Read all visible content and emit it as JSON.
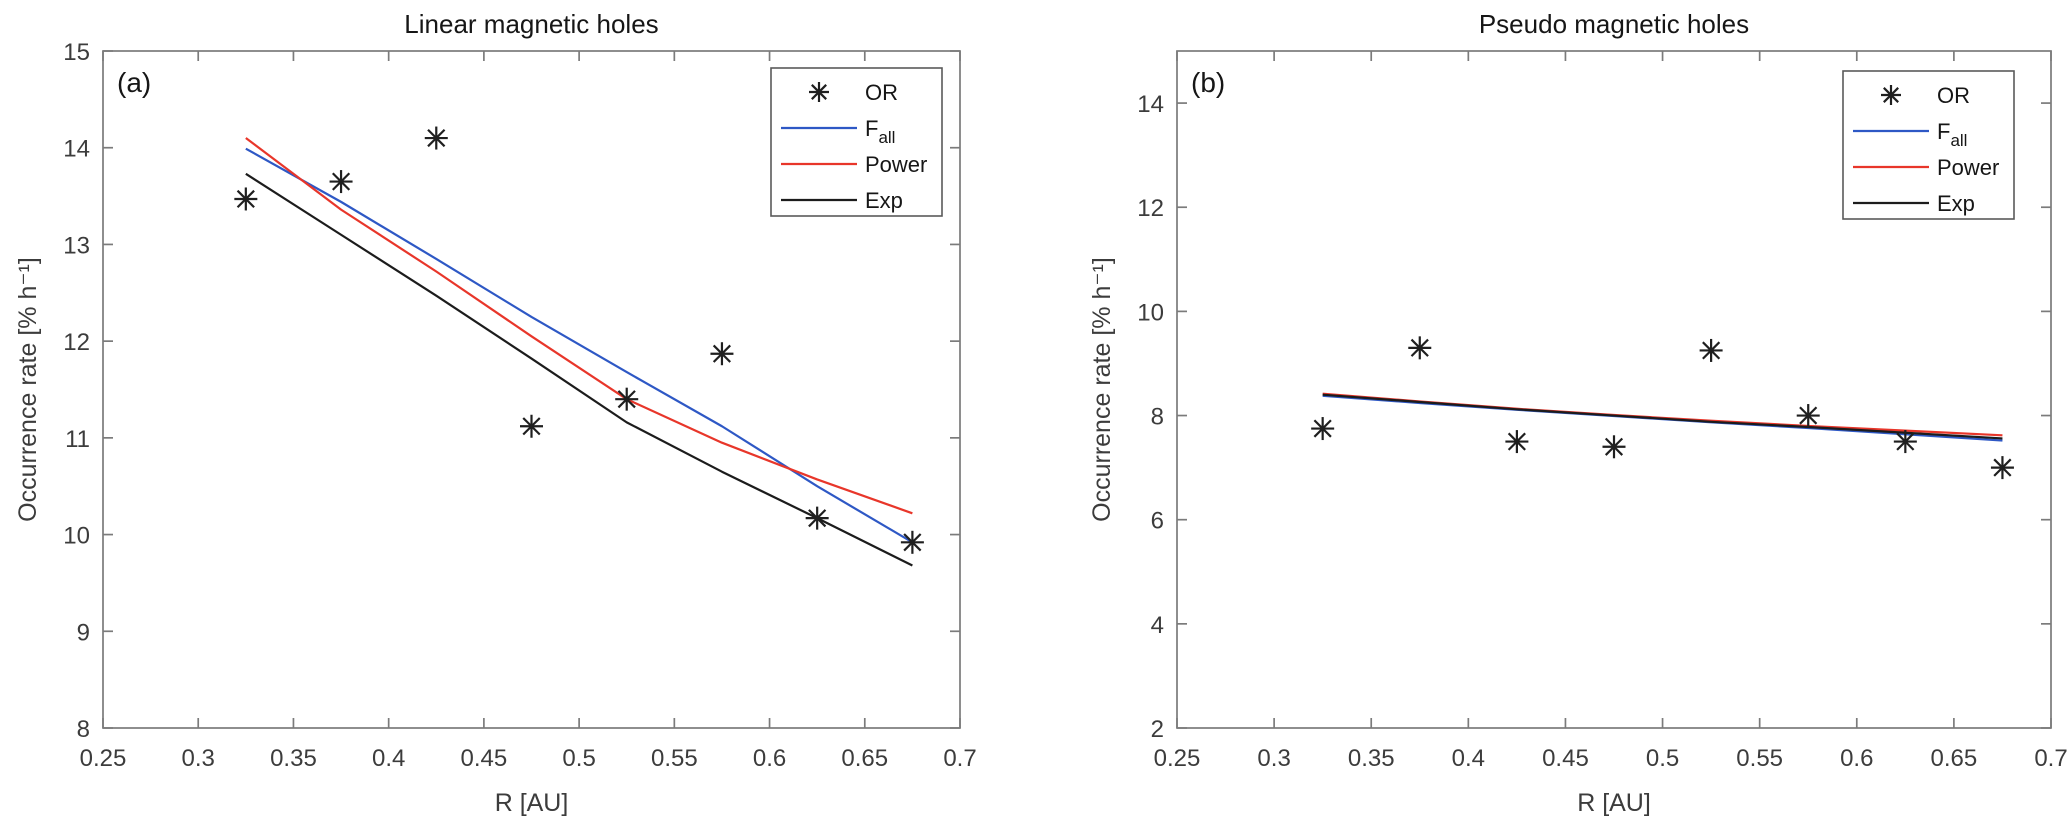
{
  "figure": {
    "background": "#ffffff",
    "axis_color": "#7b7b7b",
    "tick_label_color": "#3c3c3c",
    "title_color": "#161616",
    "marker_color": "#1f1f1f",
    "series_colors": {
      "F_all": "#2e58c5",
      "Power": "#e8362a",
      "Exp": "#1c1c1c"
    }
  },
  "legend": {
    "position": "top-right-inset",
    "entries": [
      {
        "kind": "marker",
        "label": "OR",
        "sub": "",
        "color": "#1f1f1f"
      },
      {
        "kind": "line",
        "label": "F",
        "sub": "all",
        "color": "#2e58c5"
      },
      {
        "kind": "line",
        "label": "Power",
        "sub": "",
        "color": "#e8362a"
      },
      {
        "kind": "line",
        "label": "Exp",
        "sub": "",
        "color": "#1c1c1c"
      }
    ]
  },
  "chart_data": [
    {
      "type": "scatter",
      "panel_letter": "(a)",
      "title": "Linear magnetic holes",
      "xlabel": "R [AU]",
      "ylabel": "Occurrence rate [% h⁻¹]",
      "xlim": [
        0.25,
        0.7
      ],
      "ylim": [
        8,
        15
      ],
      "xtick_labels": [
        "0.25",
        "0.3",
        "0.35",
        "0.4",
        "0.45",
        "0.5",
        "0.55",
        "0.6",
        "0.65",
        "0.7"
      ],
      "ytick_labels": [
        "8",
        "9",
        "10",
        "11",
        "12",
        "13",
        "14",
        "15"
      ],
      "grid": false,
      "legend_position": "top-right",
      "x": [
        0.325,
        0.375,
        0.425,
        0.475,
        0.525,
        0.575,
        0.625,
        0.675
      ],
      "series": [
        {
          "name": "OR",
          "type": "scatter",
          "marker": "asterisk",
          "color": "#1f1f1f",
          "values": [
            13.47,
            13.65,
            14.1,
            11.12,
            11.4,
            11.87,
            10.17,
            9.92
          ]
        },
        {
          "name": "F_all",
          "type": "line",
          "color": "#2e58c5",
          "values": [
            13.99,
            13.44,
            12.85,
            12.25,
            11.68,
            11.12,
            10.5,
            9.92
          ]
        },
        {
          "name": "Power",
          "type": "line",
          "color": "#e8362a",
          "values": [
            14.1,
            13.36,
            12.72,
            12.05,
            11.4,
            10.95,
            10.57,
            10.22
          ]
        },
        {
          "name": "Exp",
          "type": "line",
          "color": "#1c1c1c",
          "values": [
            13.73,
            13.1,
            12.47,
            11.82,
            11.16,
            10.65,
            10.17,
            9.68
          ]
        }
      ]
    },
    {
      "type": "scatter",
      "panel_letter": "(b)",
      "title": "Pseudo magnetic holes",
      "xlabel": "R [AU]",
      "ylabel": "Occurrence rate [% h⁻¹]",
      "xlim": [
        0.25,
        0.7
      ],
      "ylim": [
        2,
        15
      ],
      "xtick_labels": [
        "0.25",
        "0.3",
        "0.35",
        "0.4",
        "0.45",
        "0.5",
        "0.55",
        "0.6",
        "0.65",
        "0.7"
      ],
      "ytick_labels": [
        "2",
        "4",
        "6",
        "8",
        "10",
        "12",
        "14"
      ],
      "grid": false,
      "legend_position": "top-right",
      "x": [
        0.325,
        0.375,
        0.425,
        0.475,
        0.525,
        0.575,
        0.625,
        0.675
      ],
      "series": [
        {
          "name": "OR",
          "type": "scatter",
          "marker": "asterisk",
          "color": "#1f1f1f",
          "values": [
            7.75,
            9.3,
            7.5,
            7.4,
            9.25,
            8.0,
            7.5,
            7.0
          ]
        },
        {
          "name": "F_all",
          "type": "line",
          "color": "#2e58c5",
          "values": [
            8.38,
            8.24,
            8.11,
            7.99,
            7.87,
            7.76,
            7.64,
            7.52
          ]
        },
        {
          "name": "Power",
          "type": "line",
          "color": "#e8362a",
          "values": [
            8.42,
            8.27,
            8.13,
            8.01,
            7.9,
            7.8,
            7.71,
            7.62
          ]
        },
        {
          "name": "Exp",
          "type": "line",
          "color": "#1c1c1c",
          "values": [
            8.4,
            8.26,
            8.12,
            8.0,
            7.88,
            7.78,
            7.67,
            7.56
          ]
        }
      ]
    }
  ]
}
